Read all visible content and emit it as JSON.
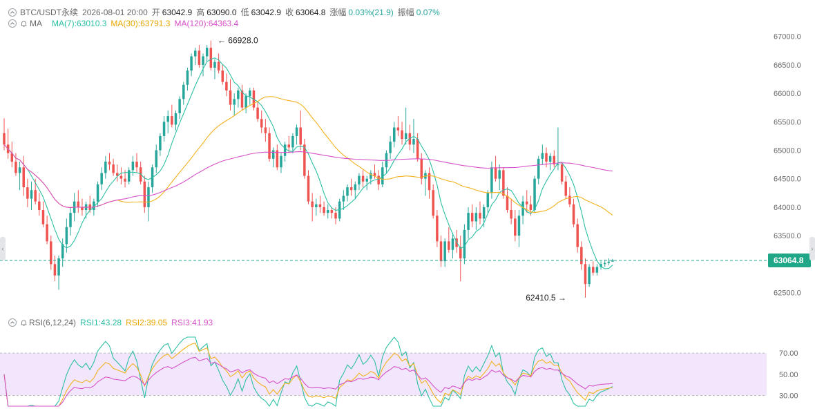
{
  "header": {
    "symbol": "BTC/USDT永续",
    "datetime": "2026-08-01 20:00",
    "open_label": "开",
    "open": "63042.9",
    "high_label": "高",
    "high": "63090.0",
    "low_label": "低",
    "low": "63042.9",
    "close_label": "收",
    "close": "63064.8",
    "change_label": "涨幅",
    "change": "0.03%(21.9)",
    "amplitude_label": "振幅",
    "amplitude": "0.07%"
  },
  "ma_row": {
    "label": "MA",
    "ma7": "MA(7):63010.3",
    "ma30": "MA(30):63791.3",
    "ma120": "MA(120):64363.4"
  },
  "rsi_row": {
    "label": "RSI(6,12,24)",
    "rsi1": "RSI1:43.28",
    "rsi2": "RSI2:39.05",
    "rsi3": "RSI3:41.93"
  },
  "colors": {
    "up": "#26a69a",
    "down": "#ef5350",
    "ma7": "#2bbfa3",
    "ma30": "#f2b21d",
    "ma120": "#d651c8",
    "rsi_band": "#f1e6fb",
    "rsi_band_border": "#b9b9b9",
    "last_price_tag": "#1fa788"
  },
  "icons": {
    "collapse": "chevron-up-icon",
    "visibility": "bell-icon"
  },
  "chart_data": [
    {
      "type": "candlestick",
      "symbol": "BTC/USDT永续",
      "ylim": [
        62300,
        67300
      ],
      "y_ticks": [
        "67000.0",
        "66500.0",
        "66000.0",
        "65500.0",
        "65000.0",
        "64500.0",
        "64000.0",
        "63500.0",
        "62500.0"
      ],
      "y_tick_values": [
        67000,
        66500,
        66000,
        65500,
        65000,
        64500,
        64000,
        63500,
        62500
      ],
      "last_price": 63064.8,
      "last_price_label": "63064.8",
      "annotations": [
        {
          "text": "← 66928.0",
          "value": 66928.0,
          "bar": 54
        },
        {
          "text": "62410.5 →",
          "value": 62410.5,
          "bar": 144
        }
      ],
      "ohlc": [
        [
          65300,
          65560,
          65000,
          65100
        ],
        [
          65100,
          65380,
          64850,
          64950
        ],
        [
          64950,
          65150,
          64700,
          64800
        ],
        [
          64800,
          64950,
          64550,
          64600
        ],
        [
          64600,
          64800,
          64300,
          64700
        ],
        [
          64700,
          64900,
          64200,
          64350
        ],
        [
          64350,
          64500,
          64000,
          64150
        ],
        [
          64150,
          64450,
          63950,
          64300
        ],
        [
          64300,
          64500,
          64050,
          64100
        ],
        [
          64100,
          64250,
          63850,
          63950
        ],
        [
          63950,
          64100,
          63650,
          63700
        ],
        [
          63700,
          63850,
          63350,
          63400
        ],
        [
          63400,
          63500,
          62900,
          63000
        ],
        [
          63000,
          63150,
          62700,
          62800
        ],
        [
          62800,
          63150,
          62550,
          63100
        ],
        [
          63100,
          63450,
          62950,
          63350
        ],
        [
          63350,
          63800,
          63200,
          63650
        ],
        [
          63650,
          64000,
          63500,
          63900
        ],
        [
          63900,
          64250,
          63750,
          64100
        ],
        [
          64100,
          64300,
          63900,
          64000
        ],
        [
          64000,
          64150,
          63850,
          63950
        ],
        [
          63950,
          64100,
          63800,
          64050
        ],
        [
          64050,
          64200,
          63900,
          63950
        ],
        [
          63950,
          64150,
          63850,
          64100
        ],
        [
          64100,
          64450,
          64000,
          64400
        ],
        [
          64400,
          64700,
          64300,
          64600
        ],
        [
          64600,
          64900,
          64500,
          64800
        ],
        [
          64800,
          64950,
          64650,
          64750
        ],
        [
          64750,
          64850,
          64550,
          64600
        ],
        [
          64600,
          64750,
          64450,
          64550
        ],
        [
          64550,
          64700,
          64400,
          64500
        ],
        [
          64500,
          64650,
          64350,
          64450
        ],
        [
          64450,
          64700,
          64400,
          64650
        ],
        [
          64650,
          64900,
          64550,
          64800
        ],
        [
          64800,
          64950,
          64600,
          64700
        ],
        [
          64700,
          64800,
          64400,
          64450
        ],
        [
          64450,
          64550,
          63900,
          64000
        ],
        [
          64000,
          64450,
          63750,
          64350
        ],
        [
          64350,
          64750,
          64250,
          64700
        ],
        [
          64700,
          65100,
          64600,
          65000
        ],
        [
          65000,
          65300,
          64900,
          65250
        ],
        [
          65250,
          65600,
          65150,
          65500
        ],
        [
          65500,
          65700,
          65300,
          65600
        ],
        [
          65600,
          65800,
          65400,
          65450
        ],
        [
          65450,
          65700,
          65350,
          65650
        ],
        [
          65650,
          65950,
          65550,
          65900
        ],
        [
          65900,
          66200,
          65800,
          66150
        ],
        [
          66150,
          66450,
          66050,
          66400
        ],
        [
          66400,
          66700,
          66300,
          66650
        ],
        [
          66650,
          66800,
          66500,
          66750
        ],
        [
          66750,
          66850,
          66450,
          66500
        ],
        [
          66500,
          66700,
          66300,
          66650
        ],
        [
          66650,
          66850,
          66550,
          66800
        ],
        [
          66800,
          66928,
          66400,
          66450
        ],
        [
          66450,
          66600,
          66250,
          66550
        ],
        [
          66550,
          66700,
          66350,
          66400
        ],
        [
          66400,
          66500,
          66150,
          66200
        ],
        [
          66200,
          66350,
          65950,
          66050
        ],
        [
          66050,
          66250,
          65700,
          65800
        ],
        [
          65800,
          66000,
          65600,
          65900
        ],
        [
          65900,
          66100,
          65750,
          66050
        ],
        [
          66050,
          66150,
          65700,
          65750
        ],
        [
          65750,
          66000,
          65650,
          65950
        ],
        [
          65950,
          66100,
          65800,
          66050
        ],
        [
          66050,
          66100,
          65700,
          65750
        ],
        [
          65750,
          65850,
          65500,
          65550
        ],
        [
          65550,
          65700,
          65300,
          65400
        ],
        [
          65400,
          65550,
          65150,
          65300
        ],
        [
          65300,
          65400,
          64800,
          64850
        ],
        [
          64850,
          65050,
          64700,
          65000
        ],
        [
          65000,
          65100,
          64650,
          64700
        ],
        [
          64700,
          64950,
          64600,
          64900
        ],
        [
          64900,
          65150,
          64800,
          65100
        ],
        [
          65100,
          65250,
          64950,
          65050
        ],
        [
          65050,
          65300,
          64950,
          65250
        ],
        [
          65250,
          65450,
          65100,
          65400
        ],
        [
          65400,
          65700,
          65000,
          65100
        ],
        [
          65100,
          65200,
          64500,
          64550
        ],
        [
          64550,
          64650,
          64050,
          64100
        ],
        [
          64100,
          64250,
          63750,
          64000
        ],
        [
          64000,
          64150,
          63850,
          64050
        ],
        [
          64050,
          64200,
          63900,
          64000
        ],
        [
          64000,
          64100,
          63850,
          63900
        ],
        [
          63900,
          64050,
          63800,
          63950
        ],
        [
          63950,
          64000,
          63800,
          63900
        ],
        [
          63900,
          64000,
          63700,
          63800
        ],
        [
          63800,
          64150,
          63750,
          64100
        ],
        [
          64100,
          64300,
          63950,
          64200
        ],
        [
          64200,
          64400,
          64100,
          64350
        ],
        [
          64350,
          64500,
          64200,
          64300
        ],
        [
          64300,
          64450,
          64150,
          64400
        ],
        [
          64400,
          64600,
          64300,
          64550
        ],
        [
          64550,
          64650,
          64350,
          64450
        ],
        [
          64450,
          64550,
          64300,
          64500
        ],
        [
          64500,
          64650,
          64400,
          64600
        ],
        [
          64600,
          64750,
          64500,
          64550
        ],
        [
          64550,
          64650,
          64300,
          64400
        ],
        [
          64400,
          64800,
          64350,
          64700
        ],
        [
          64700,
          65000,
          64600,
          64950
        ],
        [
          64950,
          65250,
          64850,
          65150
        ],
        [
          65150,
          65500,
          65050,
          65400
        ],
        [
          65400,
          65600,
          65250,
          65350
        ],
        [
          65350,
          65500,
          65100,
          65200
        ],
        [
          65200,
          65750,
          65100,
          65300
        ],
        [
          65300,
          65450,
          65000,
          65100
        ],
        [
          65100,
          65550,
          64950,
          65200
        ],
        [
          65200,
          65300,
          64800,
          64850
        ],
        [
          64850,
          64950,
          64400,
          64500
        ],
        [
          64500,
          64650,
          64200,
          64600
        ],
        [
          64600,
          64700,
          64150,
          64300
        ],
        [
          64300,
          64400,
          63800,
          63850
        ],
        [
          63850,
          63950,
          63300,
          63400
        ],
        [
          63400,
          63500,
          62950,
          63050
        ],
        [
          63050,
          63450,
          62950,
          63400
        ],
        [
          63400,
          63650,
          63200,
          63250
        ],
        [
          63250,
          63550,
          63100,
          63450
        ],
        [
          63450,
          63600,
          63200,
          63300
        ],
        [
          63300,
          63500,
          62700,
          63100
        ],
        [
          63100,
          63700,
          63000,
          63600
        ],
        [
          63600,
          64000,
          63450,
          63900
        ],
        [
          63900,
          64050,
          63650,
          63750
        ],
        [
          63750,
          64000,
          63600,
          63900
        ],
        [
          63900,
          64100,
          63700,
          63800
        ],
        [
          63800,
          64050,
          63650,
          64000
        ],
        [
          64000,
          64300,
          63900,
          64250
        ],
        [
          64250,
          64800,
          64150,
          64700
        ],
        [
          64700,
          64900,
          64450,
          64500
        ],
        [
          64500,
          64750,
          64300,
          64650
        ],
        [
          64650,
          64700,
          64150,
          64200
        ],
        [
          64200,
          64350,
          63900,
          63950
        ],
        [
          63950,
          64150,
          63700,
          63800
        ],
        [
          63800,
          63950,
          63400,
          63500
        ],
        [
          63500,
          63950,
          63300,
          63850
        ],
        [
          63850,
          64200,
          63700,
          64100
        ],
        [
          64100,
          64300,
          63900,
          64050
        ],
        [
          64050,
          64200,
          63850,
          63950
        ],
        [
          63950,
          64550,
          63900,
          64500
        ],
        [
          64500,
          64900,
          64400,
          64850
        ],
        [
          64850,
          65100,
          64750,
          64950
        ],
        [
          64950,
          65050,
          64700,
          64800
        ],
        [
          64800,
          64950,
          64650,
          64900
        ],
        [
          64900,
          65000,
          64700,
          64750
        ],
        [
          64750,
          65400,
          64650,
          64750
        ],
        [
          64750,
          64800,
          64400,
          64450
        ],
        [
          64450,
          64550,
          64150,
          64200
        ],
        [
          64200,
          64350,
          64000,
          64050
        ],
        [
          64050,
          64150,
          63650,
          63700
        ],
        [
          63700,
          63800,
          63200,
          63300
        ],
        [
          63300,
          63400,
          62900,
          63000
        ],
        [
          63000,
          63100,
          62410.5,
          62650
        ],
        [
          62650,
          63000,
          62600,
          62950
        ],
        [
          62950,
          63050,
          62800,
          62850
        ],
        [
          62850,
          63000,
          62800,
          62950
        ],
        [
          62950,
          63050,
          62900,
          63000
        ],
        [
          63000,
          63080,
          62950,
          63020
        ],
        [
          63020,
          63100,
          62980,
          63042.9
        ],
        [
          63042.9,
          63090,
          63042.9,
          63064.8
        ]
      ],
      "series": [
        {
          "name": "MA(7):63010.3",
          "type": "line",
          "period": 7
        },
        {
          "name": "MA(30):63791.3",
          "type": "line",
          "period": 30
        },
        {
          "name": "MA(120):64363.4",
          "type": "line",
          "period": 120
        }
      ]
    },
    {
      "type": "line",
      "ylim": [
        20,
        85
      ],
      "y_ticks": [
        "70.00",
        "50.00",
        "30.00"
      ],
      "y_tick_values": [
        70,
        50,
        30
      ],
      "band": [
        30,
        70
      ],
      "series": [
        {
          "name": "RSI1:43.28",
          "period": 6
        },
        {
          "name": "RSI2:39.05",
          "period": 12
        },
        {
          "name": "RSI3:41.93",
          "period": 24
        }
      ]
    }
  ]
}
